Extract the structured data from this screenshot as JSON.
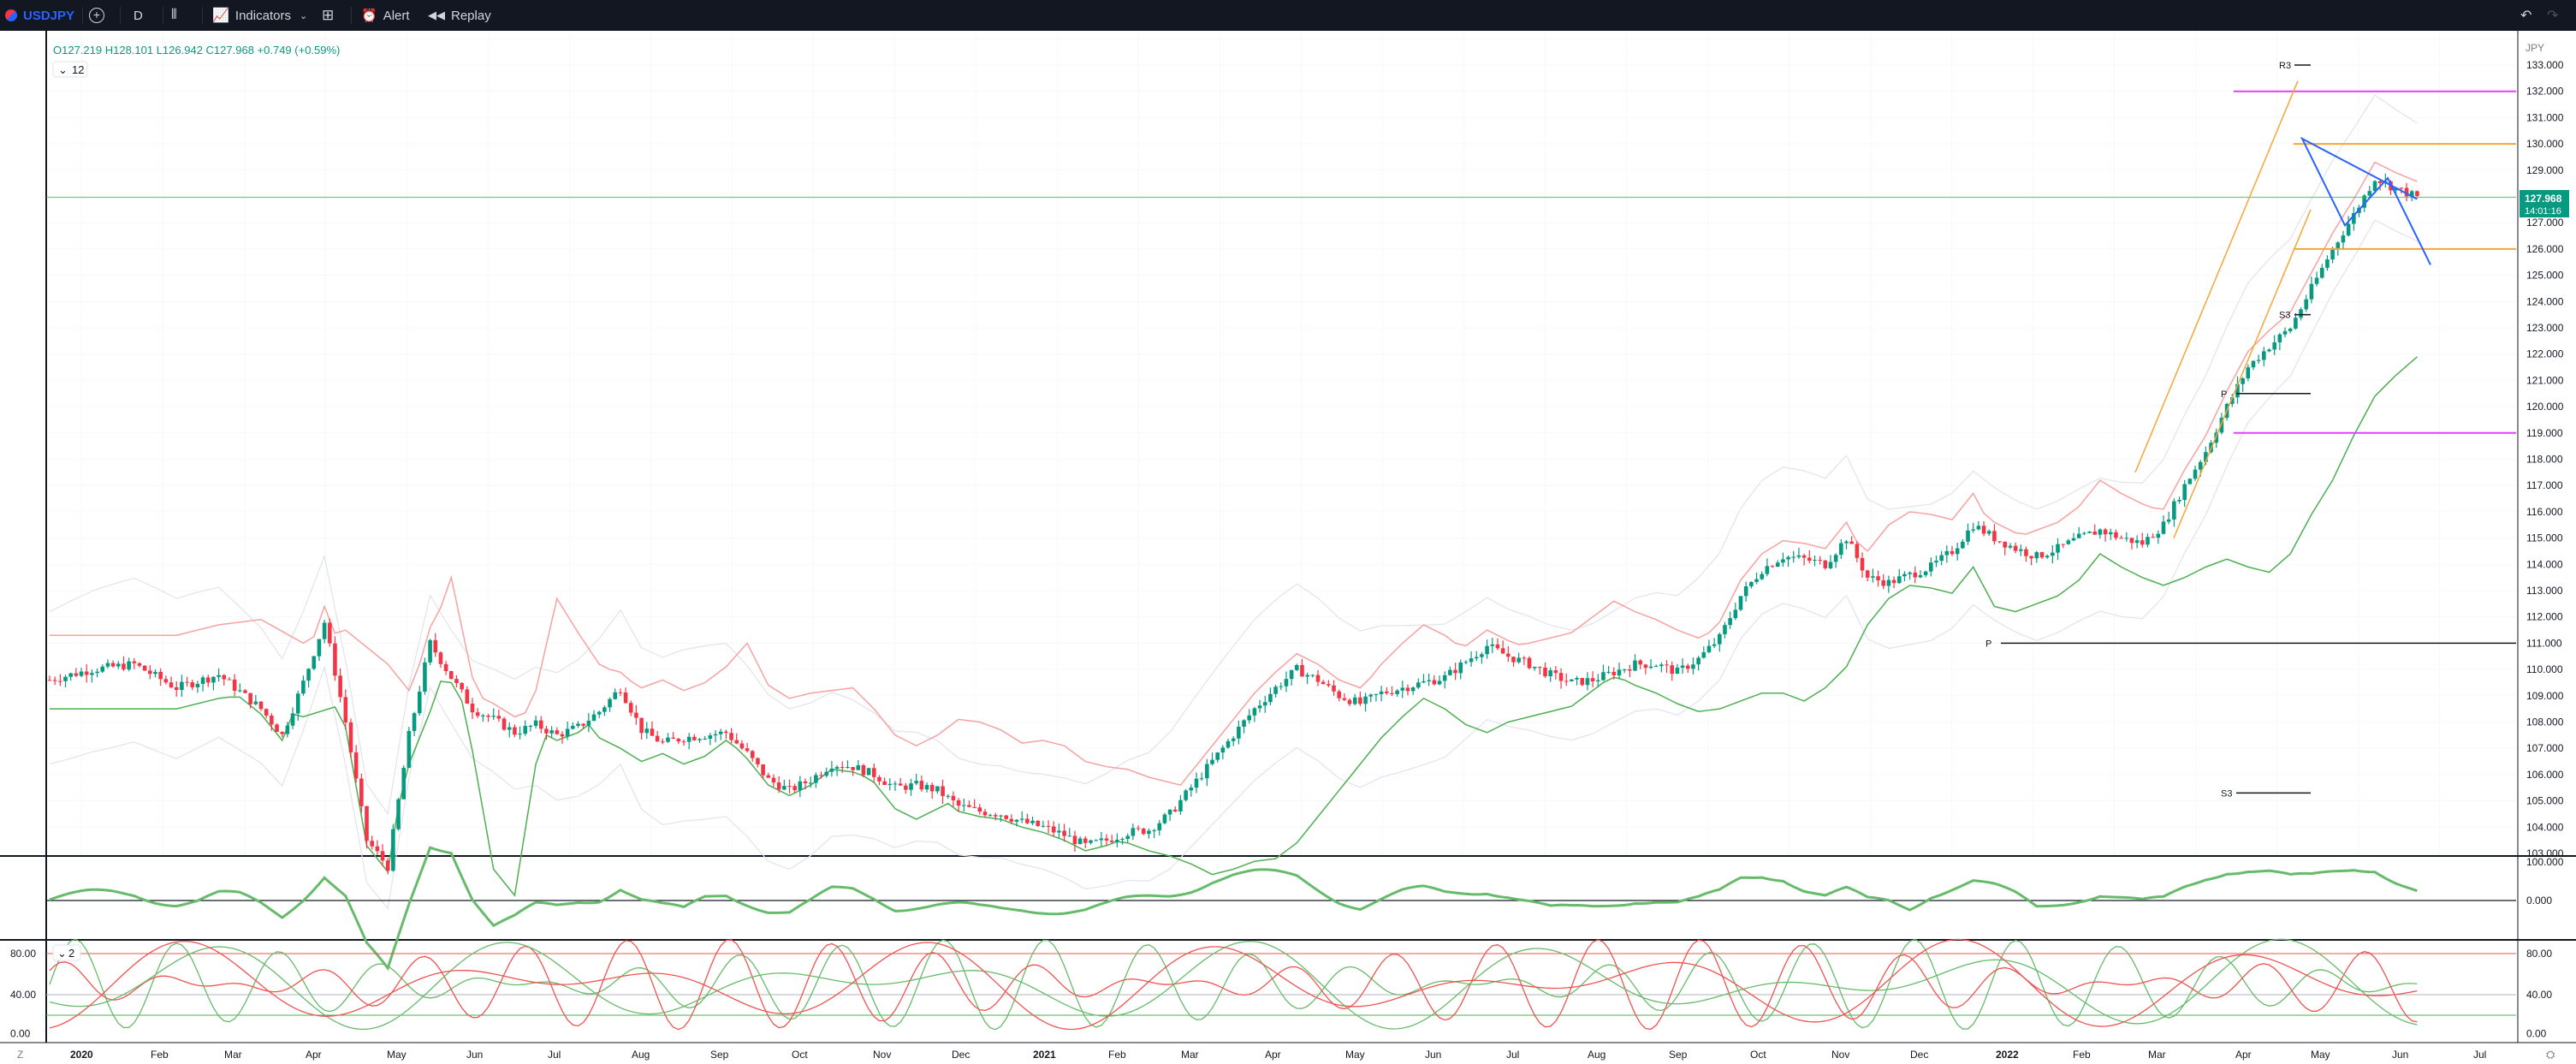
{
  "toolbar": {
    "symbol": "USDJPY",
    "interval": "D",
    "indicators_label": "Indicators",
    "alert_label": "Alert",
    "replay_label": "Replay"
  },
  "legend": {
    "ohlc": "O127.219  H128.101  L126.942  C127.968  +0.749 (+0.59%)",
    "badge": "12"
  },
  "pane3_badge": "2",
  "currency": "JPY",
  "last_price": "127.968",
  "countdown": "14:01:16",
  "colors": {
    "up": "#089981",
    "down": "#f23645",
    "accent": "#2962ff",
    "last": "#089981"
  },
  "chart_data": {
    "type": "candlestick",
    "price_axis": {
      "min": 103.0,
      "max": 133.0,
      "ticks": [
        "133.000",
        "132.000",
        "131.000",
        "130.000",
        "129.000",
        "128.000",
        "127.000",
        "126.000",
        "125.000",
        "124.000",
        "123.000",
        "122.000",
        "121.000",
        "120.000",
        "119.000",
        "118.000",
        "117.000",
        "116.000",
        "115.000",
        "114.000",
        "113.000",
        "112.000",
        "111.000",
        "110.000",
        "109.000",
        "108.000",
        "107.000",
        "106.000",
        "105.000",
        "104.000",
        "103.000"
      ]
    },
    "time_axis": {
      "labels": [
        "2020",
        "Feb",
        "Mar",
        "Apr",
        "May",
        "Jun",
        "Jul",
        "Aug",
        "Sep",
        "Oct",
        "Nov",
        "Dec",
        "2021",
        "Feb",
        "Mar",
        "Apr",
        "May",
        "Jun",
        "Jul",
        "Aug",
        "Sep",
        "Oct",
        "Nov",
        "Dec",
        "2022",
        "Feb",
        "Mar",
        "Apr",
        "May",
        "Jun",
        "Jul"
      ]
    },
    "price_path": [
      [
        0,
        109.6
      ],
      [
        2,
        110.0
      ],
      [
        4,
        110.2
      ],
      [
        6,
        109.3
      ],
      [
        8,
        109.8
      ],
      [
        10,
        108.5
      ],
      [
        11,
        107.5
      ],
      [
        12,
        109.5
      ],
      [
        13,
        111.8
      ],
      [
        14,
        108.0
      ],
      [
        15,
        103.5
      ],
      [
        16,
        102.5
      ],
      [
        17,
        107.5
      ],
      [
        18,
        111.0
      ],
      [
        19,
        109.7
      ],
      [
        20,
        108.5
      ],
      [
        21,
        108.1
      ],
      [
        22,
        107.6
      ],
      [
        23,
        107.9
      ],
      [
        24,
        107.5
      ],
      [
        25,
        107.8
      ],
      [
        26,
        108.4
      ],
      [
        27,
        109.3
      ],
      [
        28,
        107.7
      ],
      [
        29,
        107.2
      ],
      [
        30,
        107.4
      ],
      [
        31,
        107.5
      ],
      [
        32,
        107.6
      ],
      [
        33,
        106.8
      ],
      [
        34,
        105.8
      ],
      [
        35,
        105.4
      ],
      [
        36,
        105.8
      ],
      [
        37,
        106.4
      ],
      [
        38,
        106.3
      ],
      [
        39,
        106.0
      ],
      [
        40,
        105.5
      ],
      [
        41,
        105.6
      ],
      [
        42,
        105.4
      ],
      [
        43,
        104.8
      ],
      [
        44,
        104.6
      ],
      [
        45,
        104.5
      ],
      [
        46,
        104.2
      ],
      [
        47,
        104.0
      ],
      [
        48,
        103.7
      ],
      [
        49,
        103.3
      ],
      [
        50,
        103.5
      ],
      [
        51,
        103.8
      ],
      [
        52,
        103.9
      ],
      [
        53,
        104.5
      ],
      [
        54,
        105.5
      ],
      [
        55,
        106.5
      ],
      [
        56,
        107.5
      ],
      [
        57,
        108.5
      ],
      [
        58,
        109.3
      ],
      [
        59,
        110.0
      ],
      [
        60,
        109.6
      ],
      [
        61,
        109.0
      ],
      [
        62,
        108.7
      ],
      [
        63,
        109.1
      ],
      [
        64,
        109.3
      ],
      [
        65,
        109.5
      ],
      [
        66,
        109.7
      ],
      [
        67,
        110.3
      ],
      [
        68,
        110.9
      ],
      [
        69,
        110.5
      ],
      [
        70,
        110.2
      ],
      [
        71,
        109.8
      ],
      [
        72,
        109.5
      ],
      [
        73,
        109.6
      ],
      [
        74,
        109.9
      ],
      [
        75,
        110.2
      ],
      [
        76,
        110.2
      ],
      [
        77,
        109.9
      ],
      [
        78,
        110.4
      ],
      [
        79,
        111.2
      ],
      [
        80,
        112.8
      ],
      [
        81,
        113.8
      ],
      [
        82,
        114.3
      ],
      [
        83,
        114.2
      ],
      [
        84,
        114.0
      ],
      [
        85,
        115.0
      ],
      [
        86,
        113.5
      ],
      [
        87,
        113.3
      ],
      [
        88,
        113.6
      ],
      [
        89,
        113.9
      ],
      [
        90,
        114.5
      ],
      [
        91,
        115.5
      ],
      [
        92,
        115.0
      ],
      [
        93,
        114.6
      ],
      [
        94,
        114.3
      ],
      [
        95,
        114.6
      ],
      [
        96,
        115.0
      ],
      [
        97,
        115.3
      ],
      [
        98,
        115.0
      ],
      [
        99,
        114.8
      ],
      [
        100,
        115.5
      ],
      [
        101,
        117.0
      ],
      [
        102,
        118.3
      ],
      [
        103,
        120.0
      ],
      [
        104,
        121.5
      ],
      [
        105,
        122.3
      ],
      [
        106,
        123.0
      ],
      [
        107,
        124.5
      ],
      [
        108,
        126.0
      ],
      [
        109,
        127.3
      ],
      [
        110,
        128.7
      ],
      [
        111,
        128.3
      ],
      [
        112,
        127.968
      ]
    ],
    "pivots": [
      {
        "label": "R3",
        "price": 133.0
      },
      {
        "label": "S3",
        "price": 123.5
      },
      {
        "label": "P",
        "price": 120.5
      },
      {
        "label": "P",
        "price": 111.0
      },
      {
        "label": "S3",
        "price": 105.3
      }
    ],
    "horizontal_levels": [
      132.0,
      130.0,
      126.0,
      119.0,
      127.968
    ],
    "projection": [
      [
        0,
        130.2
      ],
      [
        1,
        126.9
      ],
      [
        2,
        128.7
      ],
      [
        3,
        125.4
      ]
    ],
    "pane2": {
      "ticks": [
        "100.000",
        "0.000"
      ]
    },
    "pane3": {
      "ticks": [
        "80.00",
        "40.00",
        "0.00"
      ]
    }
  }
}
